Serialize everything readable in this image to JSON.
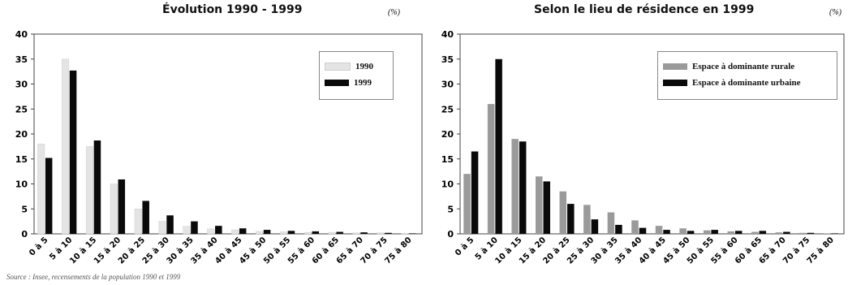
{
  "source": "Source : Insee, recensements de la population 1990 et 1999",
  "chart_data": [
    {
      "type": "bar",
      "title": "Évolution 1990 - 1999",
      "unit": "(%)",
      "categories": [
        "0 à 5",
        "5 à 10",
        "10 à 15",
        "15 à 20",
        "20 à 25",
        "25 à 30",
        "30 à 35",
        "35 à 40",
        "40 à 45",
        "45 à 50",
        "50 à 55",
        "55 à 60",
        "60 à 65",
        "65 à 70",
        "70 à 75",
        "75 à 80"
      ],
      "yticks": [
        "0",
        "5",
        "10",
        "15",
        "20",
        "25",
        "30",
        "35",
        "40"
      ],
      "ylim": [
        0,
        40
      ],
      "grid": false,
      "legend": "top-right",
      "series": [
        {
          "name": "1990",
          "color": "#e4e4e4",
          "values": [
            18,
            35,
            17.5,
            10,
            5,
            2.5,
            1.5,
            1,
            0.8,
            0.5,
            0.4,
            0.3,
            0.3,
            0.2,
            0.2,
            0.1
          ]
        },
        {
          "name": "1999",
          "color": "#0a0a0a",
          "values": [
            15.2,
            32.7,
            18.7,
            10.9,
            6.6,
            3.7,
            2.5,
            1.6,
            1.1,
            0.8,
            0.6,
            0.5,
            0.4,
            0.3,
            0.2,
            0.1
          ]
        }
      ]
    },
    {
      "type": "bar",
      "title": "Selon le lieu de résidence en 1999",
      "unit": "(%)",
      "categories": [
        "0 à 5",
        "5 à 10",
        "10 à 15",
        "15 à 20",
        "20 à 25",
        "25 à 30",
        "30 à 35",
        "35 à 40",
        "40 à 45",
        "45 à 50",
        "50 à 55",
        "55 à 60",
        "60 à 65",
        "65 à 70",
        "70 à 75",
        "75 à 80"
      ],
      "yticks": [
        "0",
        "5",
        "10",
        "15",
        "20",
        "25",
        "30",
        "35",
        "40"
      ],
      "ylim": [
        0,
        40
      ],
      "grid": false,
      "legend": "top-right",
      "series": [
        {
          "name": "Espace à dominante rurale",
          "color": "#9a9a9a",
          "values": [
            12,
            26,
            19,
            11.5,
            8.5,
            5.8,
            4.3,
            2.7,
            1.6,
            1.1,
            0.7,
            0.5,
            0.4,
            0.3,
            0.2,
            0.1
          ]
        },
        {
          "name": "Espace à dominante urbaine",
          "color": "#0a0a0a",
          "values": [
            16.5,
            35,
            18.5,
            10.5,
            6,
            2.9,
            1.8,
            1.2,
            0.8,
            0.6,
            0.8,
            0.6,
            0.6,
            0.4,
            0.2,
            0.1
          ]
        }
      ]
    }
  ]
}
